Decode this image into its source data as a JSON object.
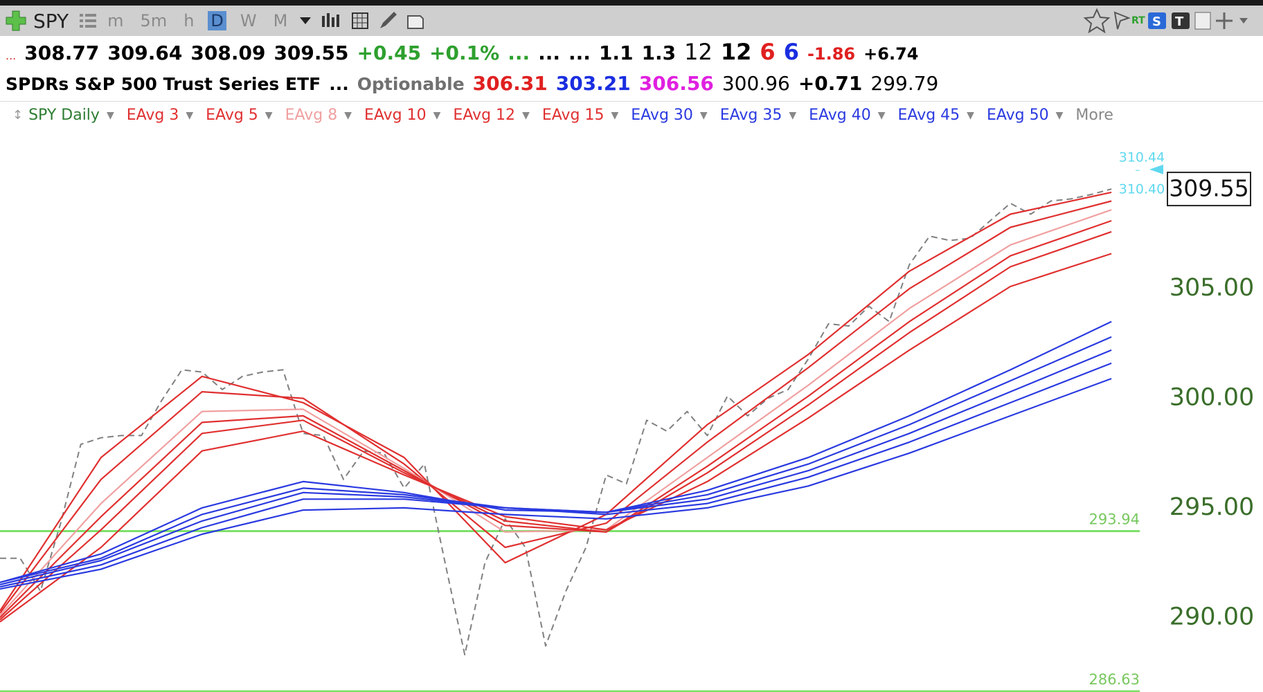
{
  "toolbar": {
    "symbol": "SPY",
    "timeframes": [
      "m",
      "5m",
      "h",
      "D",
      "W",
      "M"
    ],
    "active_timeframe": "D"
  },
  "quote": {
    "row1": [
      {
        "text": "...",
        "color": "#d03030",
        "bold": false,
        "size": 16
      },
      {
        "text": "308.77",
        "color": "#000000",
        "bold": true,
        "size": 28
      },
      {
        "text": "309.64",
        "color": "#000000",
        "bold": true,
        "size": 28
      },
      {
        "text": "308.09",
        "color": "#000000",
        "bold": true,
        "size": 28
      },
      {
        "text": "309.55",
        "color": "#000000",
        "bold": true,
        "size": 28
      },
      {
        "text": "+0.45",
        "color": "#2ea02e",
        "bold": true,
        "size": 28
      },
      {
        "text": "+0.1%",
        "color": "#2ea02e",
        "bold": true,
        "size": 28
      },
      {
        "text": "...",
        "color": "#2ea02e",
        "bold": true,
        "size": 28
      },
      {
        "text": "...",
        "color": "#000000",
        "bold": true,
        "size": 28
      },
      {
        "text": "...",
        "color": "#000000",
        "bold": true,
        "size": 28
      },
      {
        "text": "1.1",
        "color": "#000000",
        "bold": true,
        "size": 28
      },
      {
        "text": "1.3",
        "color": "#000000",
        "bold": true,
        "size": 28
      },
      {
        "text": "12",
        "color": "#000000",
        "bold": false,
        "size": 32
      },
      {
        "text": "12",
        "color": "#000000",
        "bold": true,
        "size": 32
      },
      {
        "text": "6",
        "color": "#e02020",
        "bold": true,
        "size": 32
      },
      {
        "text": "6",
        "color": "#1a2ee0",
        "bold": true,
        "size": 32
      },
      {
        "text": "-1.86",
        "color": "#e02020",
        "bold": true,
        "size": 24
      },
      {
        "text": "+6.74",
        "color": "#000000",
        "bold": true,
        "size": 24
      }
    ],
    "row2": [
      {
        "text": "SPDRs S&P 500 Trust Series ETF",
        "color": "#000000",
        "bold": true,
        "size": 25
      },
      {
        "text": "...",
        "color": "#000000",
        "bold": true,
        "size": 25
      },
      {
        "text": "Optionable",
        "color": "#707070",
        "bold": true,
        "size": 25
      },
      {
        "text": "306.31",
        "color": "#e02020",
        "bold": true,
        "size": 28
      },
      {
        "text": "303.21",
        "color": "#1a2ee0",
        "bold": true,
        "size": 28
      },
      {
        "text": "306.56",
        "color": "#e020e0",
        "bold": true,
        "size": 28
      },
      {
        "text": "300.96",
        "color": "#000000",
        "bold": false,
        "size": 28
      },
      {
        "text": "+0.71",
        "color": "#000000",
        "bold": true,
        "size": 28
      },
      {
        "text": "299.79",
        "color": "#000000",
        "bold": false,
        "size": 28
      }
    ],
    "more": "More"
  },
  "chart_data": {
    "type": "line",
    "xlim": [
      0,
      56.4
    ],
    "ylim": [
      286.6,
      312.3
    ],
    "yticks": [
      {
        "value": 290,
        "label": "290.00"
      },
      {
        "value": 295,
        "label": "295.00"
      },
      {
        "value": 300,
        "label": "300.00"
      },
      {
        "value": 305,
        "label": "305.00"
      }
    ],
    "last_price": 309.55,
    "markers": [
      {
        "value": 310.44,
        "label": "310.44",
        "color": "#60d8f0"
      },
      {
        "value": 310.4,
        "label": "310.40",
        "color": "#60d8f0"
      }
    ],
    "hlines": [
      {
        "value": 293.94,
        "color": "#7ee06a"
      },
      {
        "value": 286.63,
        "color": "#7ee06a"
      }
    ],
    "series": [
      {
        "name": "SPY Daily",
        "color": "#808080",
        "dashed": true,
        "x": [
          0,
          1,
          2,
          3,
          4,
          5,
          6,
          7,
          8,
          9,
          10,
          11,
          12,
          13,
          14,
          15,
          16,
          17,
          18,
          19,
          20,
          21,
          22,
          23,
          24,
          25,
          26,
          27,
          28,
          29,
          30,
          31,
          32,
          33,
          34,
          35,
          36,
          37,
          38,
          39,
          40,
          41,
          42,
          43,
          44,
          45,
          46,
          47,
          48,
          49,
          50,
          51,
          52,
          53,
          54,
          55
        ],
        "values": [
          292.7,
          292.7,
          291.2,
          294.3,
          297.9,
          298.2,
          298.3,
          298.3,
          299.9,
          301.3,
          301.2,
          300.4,
          301.0,
          301.2,
          301.3,
          298.4,
          298.3,
          296.3,
          297.6,
          297.5,
          295.9,
          297.0,
          292.6,
          288.3,
          292.5,
          294.5,
          293.2,
          288.7,
          291.2,
          293.2,
          296.5,
          296.1,
          299.0,
          298.5,
          299.4,
          298.3,
          300.1,
          299.2,
          300.0,
          300.4,
          301.8,
          303.4,
          303.3,
          304.2,
          303.5,
          306.1,
          307.4,
          307.2,
          307.3,
          308.1,
          308.9,
          308.4,
          309.0,
          309.1,
          309.3,
          309.55
        ]
      },
      {
        "name": "EAvg 3",
        "color": "#e03030",
        "x": [
          0,
          5,
          10,
          15,
          20,
          25,
          30,
          35,
          40,
          45,
          50,
          55
        ],
        "values": [
          290.3,
          297.3,
          301.0,
          299.8,
          297.3,
          292.5,
          294.7,
          298.8,
          302.0,
          305.8,
          308.4,
          309.4
        ]
      },
      {
        "name": "EAvg 5",
        "color": "#e03030",
        "x": [
          0,
          5,
          10,
          15,
          20,
          25,
          30,
          35,
          40,
          45,
          50,
          55
        ],
        "values": [
          290.2,
          296.3,
          300.3,
          300.0,
          297.0,
          293.2,
          294.3,
          298.0,
          301.4,
          305.0,
          307.8,
          309.0
        ]
      },
      {
        "name": "EAvg 8",
        "color": "#f0a0a0",
        "x": [
          0,
          5,
          10,
          15,
          20,
          25,
          30,
          35,
          40,
          45,
          50,
          55
        ],
        "values": [
          290.1,
          295.2,
          299.4,
          299.5,
          296.8,
          293.9,
          294.0,
          297.3,
          300.6,
          304.1,
          307.0,
          308.6
        ]
      },
      {
        "name": "EAvg 10",
        "color": "#e03030",
        "x": [
          0,
          5,
          10,
          15,
          20,
          25,
          30,
          35,
          40,
          45,
          50,
          55
        ],
        "values": [
          290.0,
          294.6,
          298.9,
          299.2,
          296.7,
          294.2,
          293.9,
          296.9,
          300.1,
          303.5,
          306.5,
          308.1
        ]
      },
      {
        "name": "EAvg 12",
        "color": "#e03030",
        "x": [
          0,
          5,
          10,
          15,
          20,
          25,
          30,
          35,
          40,
          45,
          50,
          55
        ],
        "values": [
          289.9,
          294.0,
          298.4,
          299.0,
          296.6,
          294.4,
          293.9,
          296.6,
          299.7,
          303.0,
          306.0,
          307.6
        ]
      },
      {
        "name": "EAvg 15",
        "color": "#e03030",
        "x": [
          0,
          5,
          10,
          15,
          20,
          25,
          30,
          35,
          40,
          45,
          50,
          55
        ],
        "values": [
          289.8,
          293.2,
          297.6,
          298.5,
          296.5,
          294.6,
          294.0,
          296.2,
          299.1,
          302.2,
          305.1,
          306.6
        ]
      },
      {
        "name": "EAvg 30",
        "color": "#2a3ae0",
        "x": [
          0,
          5,
          10,
          15,
          20,
          25,
          30,
          35,
          40,
          45,
          50,
          55
        ],
        "values": [
          291.6,
          292.9,
          295.0,
          296.2,
          295.7,
          294.9,
          294.8,
          295.8,
          297.3,
          299.2,
          301.3,
          303.5
        ]
      },
      {
        "name": "EAvg 35",
        "color": "#2a3ae0",
        "x": [
          0,
          5,
          10,
          15,
          20,
          25,
          30,
          35,
          40,
          45,
          50,
          55
        ],
        "values": [
          291.6,
          292.7,
          294.7,
          295.9,
          295.6,
          295.0,
          294.8,
          295.6,
          297.0,
          298.8,
          300.8,
          302.8
        ]
      },
      {
        "name": "EAvg 40",
        "color": "#2a3ae0",
        "x": [
          0,
          5,
          10,
          15,
          20,
          25,
          30,
          35,
          40,
          45,
          50,
          55
        ],
        "values": [
          291.5,
          292.6,
          294.4,
          295.7,
          295.5,
          295.0,
          294.8,
          295.4,
          296.7,
          298.4,
          300.3,
          302.2
        ]
      },
      {
        "name": "EAvg 45",
        "color": "#2a3ae0",
        "x": [
          0,
          5,
          10,
          15,
          20,
          25,
          30,
          35,
          40,
          45,
          50,
          55
        ],
        "values": [
          291.4,
          292.4,
          294.1,
          295.4,
          295.4,
          295.0,
          294.7,
          295.2,
          296.4,
          298.0,
          299.8,
          301.6
        ]
      },
      {
        "name": "EAvg 50",
        "color": "#2a3ae0",
        "x": [
          0,
          5,
          10,
          15,
          20,
          25,
          30,
          35,
          40,
          45,
          50,
          55
        ],
        "values": [
          291.3,
          292.2,
          293.8,
          294.9,
          295.0,
          294.7,
          294.5,
          295.0,
          296.0,
          297.5,
          299.2,
          300.9
        ]
      }
    ]
  }
}
